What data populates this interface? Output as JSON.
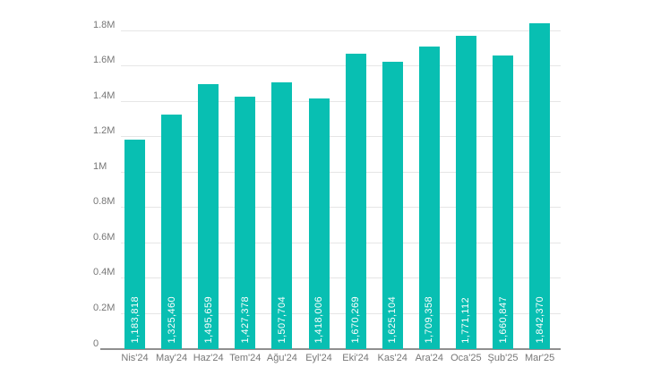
{
  "chart_data": {
    "type": "bar",
    "title": "",
    "xlabel": "",
    "ylabel": "",
    "categories": [
      "Nis'24",
      "May'24",
      "Haz'24",
      "Tem'24",
      "Ağu'24",
      "Eyl'24",
      "Eki'24",
      "Kas'24",
      "Ara'24",
      "Oca'25",
      "Şub'25",
      "Mar'25"
    ],
    "values": [
      1183818,
      1325460,
      1495659,
      1427378,
      1507704,
      1418006,
      1670269,
      1625104,
      1709358,
      1771112,
      1660847,
      1842370
    ],
    "value_labels": [
      "1,183,818",
      "1,325,460",
      "1,495,659",
      "1,427,378",
      "1,507,704",
      "1,418,006",
      "1,670,269",
      "1,625,104",
      "1,709,358",
      "1,771,112",
      "1,660,847",
      "1,842,370"
    ],
    "y_tick_labels": [
      "0",
      "0.2M",
      "0.4M",
      "0.6M",
      "0.8M",
      "1M",
      "1.2M",
      "1.4M",
      "1.6M",
      "1.8M"
    ],
    "y_tick_values": [
      0,
      200000,
      400000,
      600000,
      800000,
      1000000,
      1200000,
      1400000,
      1600000,
      1800000
    ],
    "ylim": [
      0,
      1800000
    ],
    "grid": true,
    "legend": "none",
    "bar_color": "#08bfb2",
    "value_label_color": "#ffffff",
    "tick_label_color": "#777777",
    "gridline_color": "#e6e6e6",
    "axis_line_color": "#8f8f8f"
  }
}
